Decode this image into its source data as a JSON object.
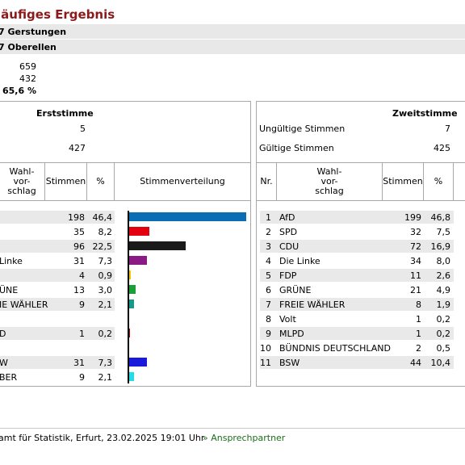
{
  "title": "läufiges Ergebnis",
  "bands": [
    "7  Gerstungen",
    "7  Oberellen"
  ],
  "summary": {
    "v1": "659",
    "v2": "432",
    "v3": "65,6 %"
  },
  "erst": {
    "header": "Erststimme",
    "invalid_value": "5",
    "valid_value": "427",
    "col_wahl": "Wahl-\nvor-\nschlag",
    "col_stimmen": "Stimmen",
    "col_pct": "%",
    "col_vert": "Stimmenverteilung",
    "rows": [
      {
        "name": "",
        "votes": "198",
        "pct": "46,4",
        "share": 46.4,
        "color": "#0a6eb4"
      },
      {
        "name": "",
        "votes": "35",
        "pct": "8,2",
        "share": 8.2,
        "color": "#e3000f"
      },
      {
        "name": "",
        "votes": "96",
        "pct": "22,5",
        "share": 22.5,
        "color": "#1a1a1a"
      },
      {
        "name": "Linke",
        "votes": "31",
        "pct": "7,3",
        "share": 7.3,
        "color": "#8b1a84"
      },
      {
        "name": "",
        "votes": "4",
        "pct": "0,9",
        "share": 0.9,
        "color": "#f5c400"
      },
      {
        "name": "ÜNE",
        "votes": "13",
        "pct": "3,0",
        "share": 3.0,
        "color": "#1aa037"
      },
      {
        "name": "IE WÄHLER",
        "votes": "9",
        "pct": "2,1",
        "share": 2.1,
        "color": "#15998a"
      },
      {
        "name": "",
        "votes": "",
        "pct": "",
        "share": 0,
        "color": ""
      },
      {
        "name": "D",
        "votes": "1",
        "pct": "0,2",
        "share": 0.2,
        "color": "#c00000"
      },
      {
        "name": "",
        "votes": "",
        "pct": "",
        "share": 0,
        "color": ""
      },
      {
        "name": "W",
        "votes": "31",
        "pct": "7,3",
        "share": 7.3,
        "color": "#1a1adc"
      },
      {
        "name": "BER",
        "votes": "9",
        "pct": "2,1",
        "share": 2.1,
        "color": "#22dce6"
      }
    ]
  },
  "zweit": {
    "header": "Zweitstimme",
    "invalid_label": "Ungültige Stimmen",
    "invalid_value": "7",
    "valid_label": "Gültige Stimmen",
    "valid_value": "425",
    "col_nr": "Nr.",
    "col_wahl": "Wahl-\nvor-\nschlag",
    "col_stimmen": "Stimmen",
    "col_pct": "%",
    "rows": [
      {
        "nr": "1",
        "name": "AfD",
        "votes": "199",
        "pct": "46,8"
      },
      {
        "nr": "2",
        "name": "SPD",
        "votes": "32",
        "pct": "7,5"
      },
      {
        "nr": "3",
        "name": "CDU",
        "votes": "72",
        "pct": "16,9"
      },
      {
        "nr": "4",
        "name": "Die Linke",
        "votes": "34",
        "pct": "8,0"
      },
      {
        "nr": "5",
        "name": "FDP",
        "votes": "11",
        "pct": "2,6"
      },
      {
        "nr": "6",
        "name": "GRÜNE",
        "votes": "21",
        "pct": "4,9"
      },
      {
        "nr": "7",
        "name": "FREIE WÄHLER",
        "votes": "8",
        "pct": "1,9"
      },
      {
        "nr": "8",
        "name": "Volt",
        "votes": "1",
        "pct": "0,2"
      },
      {
        "nr": "9",
        "name": "MLPD",
        "votes": "1",
        "pct": "0,2"
      },
      {
        "nr": "10",
        "name": "BÜNDNIS DEUTSCHLAND",
        "votes": "2",
        "pct": "0,5"
      },
      {
        "nr": "11",
        "name": "BSW",
        "votes": "44",
        "pct": "10,4"
      }
    ]
  },
  "chart_data": {
    "type": "bar",
    "title": "Stimmenverteilung",
    "categories": [
      "",
      "",
      "",
      "Linke",
      "",
      "ÜNE",
      "IE WÄHLER",
      "",
      "D",
      "",
      "W",
      "BER"
    ],
    "values": [
      46.4,
      8.2,
      22.5,
      7.3,
      0.9,
      3.0,
      2.1,
      0,
      0.2,
      0,
      7.3,
      2.1
    ],
    "orientation": "horizontal"
  },
  "footer": {
    "source": "amt für Statistik, Erfurt, 23.02.2025 19:01 Uhr",
    "link": "» Ansprechpartner"
  }
}
